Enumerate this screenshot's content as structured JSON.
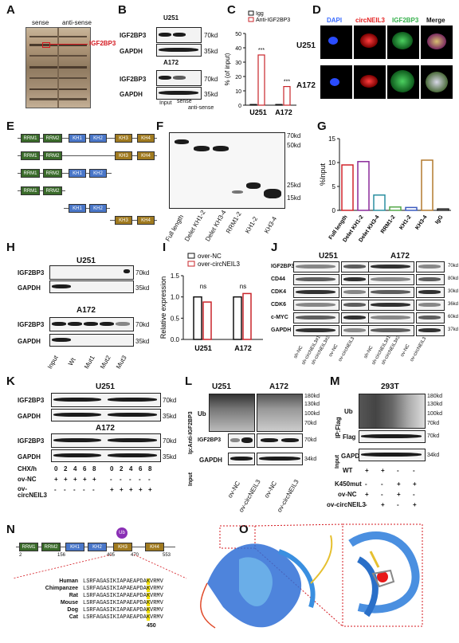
{
  "panels": {
    "A": {
      "label": "A",
      "sense": "sense",
      "antisense": "anti-sense",
      "marker": "IGF2BP3",
      "protein_color": "#d4181f"
    },
    "B": {
      "label": "B",
      "cell1": "U251",
      "cell2": "A172",
      "rows1": [
        "IGF2BP3",
        "GAPDH"
      ],
      "rows2": [
        "IGF2BP3",
        "GAPDH"
      ],
      "kd1": [
        "70kd",
        "35kd"
      ],
      "kd2": [
        "70kd",
        "35kd"
      ],
      "lanes": [
        "Input",
        "sense",
        "anti-sense"
      ]
    },
    "C": {
      "label": "C",
      "legend": [
        "Igg",
        "Anti-IGF2BP3"
      ],
      "ylabel": "% (of input)",
      "sig": [
        "***",
        "***"
      ]
    },
    "D": {
      "label": "D",
      "headers": [
        "DAPI",
        "circNEIL3",
        "IGF2BP3",
        "Merge"
      ],
      "header_colors": [
        "#3b6cff",
        "#e52020",
        "#33b04a",
        "#111111"
      ],
      "rows": [
        "U251",
        "A172"
      ]
    },
    "E": {
      "label": "E",
      "rrm1": "RRM1",
      "rrm2": "RRM2",
      "kh1": "KH1",
      "kh2": "KH2",
      "kh3": "KH3",
      "kh4": "KH4"
    },
    "F": {
      "label": "F",
      "kd": [
        "70kd",
        "50kd",
        "25kd",
        "15kd"
      ],
      "lanes": [
        "Full length",
        "Delet KH1-2",
        "Delet KH3-4",
        "RRM1-2",
        "KH1-2",
        "KH3-4"
      ]
    },
    "G": {
      "label": "G",
      "ylabel": "%Input",
      "categories": [
        "Full length",
        "Delet KH1-2",
        "Delet KH3-4",
        "RRM1-2",
        "KH1-2",
        "KH3-4",
        "IgG"
      ]
    },
    "H": {
      "label": "H",
      "cell1": "U251",
      "cell2": "A172",
      "rows": [
        "IGF2BP3",
        "GAPDH"
      ],
      "kd": [
        "70kd",
        "35kd"
      ],
      "lanes": [
        "Input",
        "Wt",
        "Mut1",
        "Mut2",
        "Mut3"
      ]
    },
    "I": {
      "label": "I",
      "legend": [
        "over-NC",
        "over-circNEIL3"
      ],
      "ylabel": "Relative expression",
      "ns": [
        "ns",
        "ns"
      ]
    },
    "J": {
      "label": "J",
      "cell1": "U251",
      "cell2": "A172",
      "rows": [
        "IGF2BP3",
        "CD44",
        "CDK4",
        "CDK6",
        "c-MYC",
        "GAPDH"
      ],
      "kd": [
        "70kd",
        "80kd",
        "30kd",
        "36kd",
        "60kd",
        "37kd"
      ],
      "lanes": [
        "sh-NC",
        "sh-circNEIL3#1",
        "sh-circNEIL3#2",
        "ov-NC",
        "ov-circNEIL3"
      ]
    },
    "K": {
      "label": "K",
      "cell1": "U251",
      "cell2": "A172",
      "rows": [
        "IGF2BP3",
        "GAPDH"
      ],
      "kd": [
        "70kd",
        "35kd"
      ],
      "chx": "CHX/h",
      "chx_values": [
        "0",
        "2",
        "4",
        "6",
        "8",
        "0",
        "2",
        "4",
        "6",
        "8"
      ],
      "ovnc": "ov-NC",
      "ovcirc": "ov-circNEIL3",
      "ovnc_marks": [
        "+",
        "+",
        "+",
        "+",
        "+",
        "-",
        "-",
        "-",
        "-",
        "-"
      ],
      "ovcirc_marks": [
        "-",
        "-",
        "-",
        "-",
        "-",
        "+",
        "+",
        "+",
        "+",
        "+"
      ]
    },
    "L": {
      "label": "L",
      "cell1": "U251",
      "cell2": "A172",
      "ip": "Ip:Anti-IGF2BP3",
      "input": "Input",
      "rows": [
        "Ub",
        "IGF2BP3",
        "GAPDH"
      ],
      "kd": [
        "180kd",
        "130kd",
        "100kd",
        "70kd",
        "70kd",
        "34kd"
      ],
      "lanes": [
        "ov-NC",
        "ov-circNEIL3",
        "ov-NC",
        "ov-circNEIL3"
      ]
    },
    "M": {
      "label": "M",
      "cell": "293T",
      "ip": "IP:Flag",
      "input": "Input",
      "rows": [
        "Ub",
        "Flag",
        "GAPDH"
      ],
      "kd": [
        "180kd",
        "130kd",
        "100kd",
        "70kd",
        "70kd",
        "34kd"
      ],
      "conds": [
        "WT",
        "K450mut",
        "ov-NC",
        "ov-circNEIL3"
      ],
      "wt": [
        "+",
        "+",
        "-",
        "-"
      ],
      "k450": [
        "-",
        "-",
        "+",
        "+"
      ],
      "nc": [
        "+",
        "-",
        "+",
        "-"
      ],
      "circ": [
        "-",
        "+",
        "-",
        "+"
      ]
    },
    "N": {
      "label": "N",
      "ub": "Ub",
      "positions": [
        "2",
        "156",
        "405",
        "470",
        "553"
      ],
      "species": [
        "Human",
        "Chimpanzee",
        "Rat",
        "Mouse",
        "Dog",
        "Cat"
      ],
      "seq_pre": "LSRFAGASIKIAPAEAPDA",
      "seq_k": "K",
      "seq_post": "VRMV",
      "site": "450"
    },
    "O": {
      "label": "O"
    }
  },
  "chart_data": [
    {
      "panel": "C",
      "type": "bar",
      "categories": [
        "U251",
        "A172"
      ],
      "series": [
        {
          "name": "Igg",
          "values": [
            0.5,
            0.5
          ]
        },
        {
          "name": "Anti-IGF2BP3",
          "values": [
            35,
            13
          ]
        }
      ],
      "yticks": [
        "0",
        "10",
        "20",
        "30",
        "40",
        "50"
      ],
      "ylim": [
        0,
        50
      ]
    },
    {
      "panel": "G",
      "type": "bar",
      "categories": [
        "Full length",
        "Delet KH1-2",
        "Delet KH3-4",
        "RRM1-2",
        "KH1-2",
        "KH3-4",
        "IgG"
      ],
      "values": [
        9.5,
        10.2,
        3.2,
        0.7,
        0.6,
        10.5,
        0.3
      ],
      "colors": [
        "#d0242b",
        "#8a2a9a",
        "#2b8fa0",
        "#55a84a",
        "#3b5bbf",
        "#b37a2e",
        "#222222"
      ],
      "yticks": [
        "0",
        "5",
        "10",
        "15"
      ],
      "ylim": [
        0,
        15
      ]
    },
    {
      "panel": "I",
      "type": "bar",
      "categories": [
        "U251",
        "A172"
      ],
      "series": [
        {
          "name": "over-NC",
          "values": [
            1.0,
            1.0
          ]
        },
        {
          "name": "over-circNEIL3",
          "values": [
            0.88,
            1.08
          ]
        }
      ],
      "yticks": [
        "0.0",
        "0.5",
        "1.0",
        "1.5"
      ],
      "ylim": [
        0,
        1.5
      ]
    }
  ]
}
